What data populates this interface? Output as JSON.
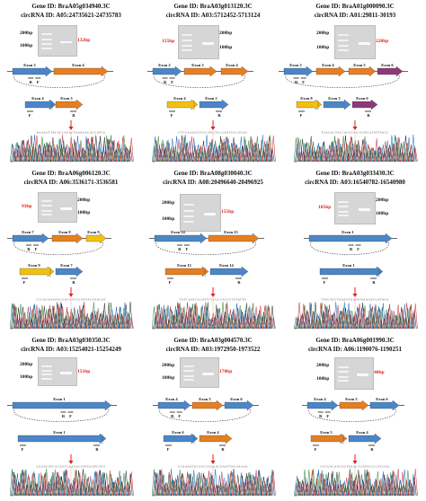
{
  "panels": [
    {
      "gene_id": "Gene ID: BraA05g034940.3C",
      "circ_id": "circRNA ID: A05:24735621-24735783",
      "ladder_top": "200bp",
      "ladder_bottom": "100bp",
      "band": "132bp",
      "exons_top": [
        "Exon 3",
        "Exon 4"
      ],
      "exons_bottom": [
        "Exon 4",
        "Exon 3"
      ],
      "primers": [
        "F",
        "R"
      ]
    },
    {
      "gene_id": "Gene ID: BraA03g013120.3C",
      "circ_id": "circRNA ID: A03:5712452-5713124",
      "ladder_top": "200bp",
      "ladder_bottom": "100bp",
      "band": "155bp",
      "exons_top": [
        "Exon 2",
        "Exon 3",
        "Exon 4"
      ],
      "exons_bottom": [
        "Exon 4",
        "Exon 2"
      ],
      "primers": [
        "F",
        "R"
      ]
    },
    {
      "gene_id": "Gene ID: BraA01g000090.3C",
      "circ_id": "circRNA ID: A01:29811-30193",
      "ladder_top": "200bp",
      "ladder_bottom": "100bp",
      "band": "220bp",
      "exons_top": [
        "Exon 3",
        "Exon 4",
        "Exon 5",
        "Exon 6"
      ],
      "exons_bottom": [
        "Exon 8",
        "Exon 3",
        "Exon 6"
      ],
      "primers": [
        "F",
        "R"
      ]
    },
    {
      "gene_id": "Gene ID: BraA06g006120.3C",
      "circ_id": "circRNA ID: A06:3536171-3536581",
      "ladder_top": "200bp",
      "ladder_bottom": "100bp",
      "band": "93bp",
      "exons_top": [
        "Exon 7",
        "Exon 8",
        "Exon 9"
      ],
      "exons_bottom": [
        "Exon 9",
        "Exon 7"
      ],
      "primers": [
        "F",
        "R"
      ]
    },
    {
      "gene_id": "Gene ID: BraA08g030040.3C",
      "circ_id": "circRNA ID: A08:20496640-20496925",
      "ladder_top": "200bp",
      "ladder_bottom": "100bp",
      "band": "155bp",
      "exons_top": [
        "Exon 14",
        "Exon 15"
      ],
      "exons_bottom": [
        "Exon 15",
        "Exon 14"
      ],
      "primers": [
        "F",
        "R"
      ]
    },
    {
      "gene_id": "Gene ID: BraA03g033430.3C",
      "circ_id": "circRNA ID: A03:16540782-16540980",
      "ladder_top": "200bp",
      "ladder_bottom": "100bp",
      "band": "105bp",
      "exons_top": [
        "Exon 1"
      ],
      "exons_bottom": [
        "Exon 1"
      ],
      "primers": [
        "F",
        "R"
      ]
    },
    {
      "gene_id": "Gene ID: BraA03g030350.3C",
      "circ_id": "circRNA ID: A03:15254021-15254249",
      "ladder_top": "200bp",
      "ladder_bottom": "100bp",
      "band": "151bp",
      "exons_top": [
        "Exon 1"
      ],
      "exons_bottom": [
        "Exon 1"
      ],
      "primers": [
        "F",
        "R"
      ]
    },
    {
      "gene_id": "Gene ID: BraA03g004570.3C",
      "circ_id": "circRNA ID: A03:1972950-1973522",
      "ladder_top": "200bp",
      "ladder_bottom": "100bp",
      "band": "170bp",
      "exons_top": [
        "Exon 4",
        "Exon 5",
        "Exon 6"
      ],
      "exons_bottom": [
        "Exon 6",
        "Exon 4"
      ],
      "primers": [
        "F",
        "R"
      ]
    },
    {
      "gene_id": "Gene ID: BraA06g001990.3C",
      "circ_id": "circRNA ID: A06:1190076-1190251",
      "ladder_top": "200bp",
      "ladder_bottom": "100bp",
      "band": "40bp",
      "exons_top": [
        "Exon 4",
        "Exon 5",
        "Exon 6"
      ],
      "exons_bottom": [
        "Exon 5",
        "Exon 4"
      ],
      "primers": [
        "F",
        "R"
      ]
    }
  ],
  "colors": {
    "blue": "#4a86c8",
    "orange": "#e67e22",
    "yellow": "#f2c10f",
    "purple": "#8e3a7a",
    "red_arrow": "#e0201b",
    "band_text": "#e0201b"
  }
}
